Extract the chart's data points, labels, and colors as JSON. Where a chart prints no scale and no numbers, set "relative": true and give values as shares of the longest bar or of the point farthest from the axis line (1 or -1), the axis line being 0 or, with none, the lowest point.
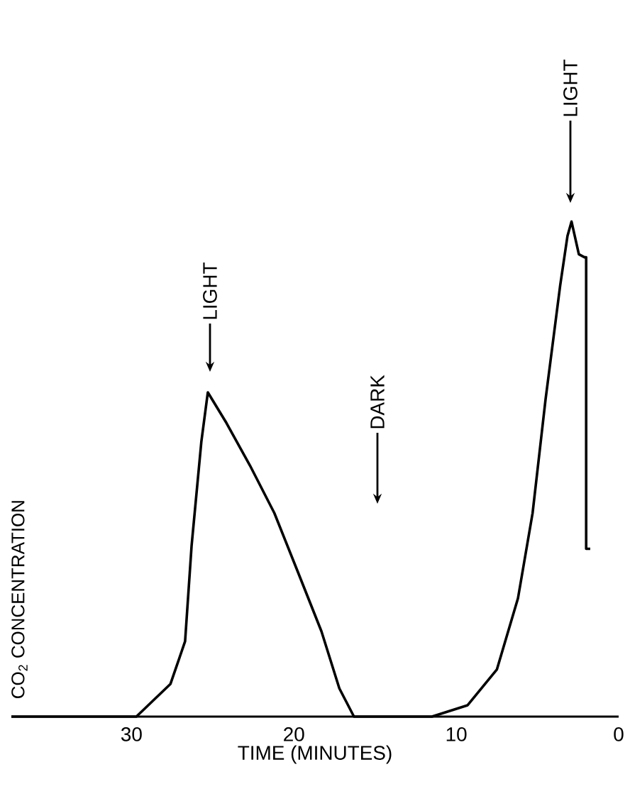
{
  "chart_data": {
    "type": "line",
    "xlabel": "TIME (MINUTES)",
    "ylabel": "CO$_{2}$ CONCENTRATION",
    "relative": true,
    "color": "#000000",
    "xlim": [
      37.4,
      0
    ],
    "xticks": [
      30,
      20,
      10,
      0
    ],
    "x": [
      37.4,
      29.7,
      27.6,
      26.7,
      26.3,
      25.7,
      25.3,
      24.15,
      22.7,
      21.2,
      19.8,
      18.3,
      17.2,
      16.3,
      11.5,
      9.3,
      7.5,
      6.2,
      5.3,
      4.5,
      3.6,
      3.15,
      2.9,
      2.45,
      2.1,
      2.0,
      2.0,
      1.75
    ],
    "values": [
      0,
      0,
      0.066,
      0.152,
      0.345,
      0.555,
      0.655,
      0.593,
      0.507,
      0.411,
      0.296,
      0.172,
      0.057,
      0,
      0,
      0.023,
      0.095,
      0.239,
      0.411,
      0.641,
      0.871,
      0.971,
      1,
      0.934,
      0.928,
      0.928,
      0.339,
      0.339
    ],
    "annotations": [
      "LIGHT",
      "DARK",
      "LIGHT"
    ]
  }
}
